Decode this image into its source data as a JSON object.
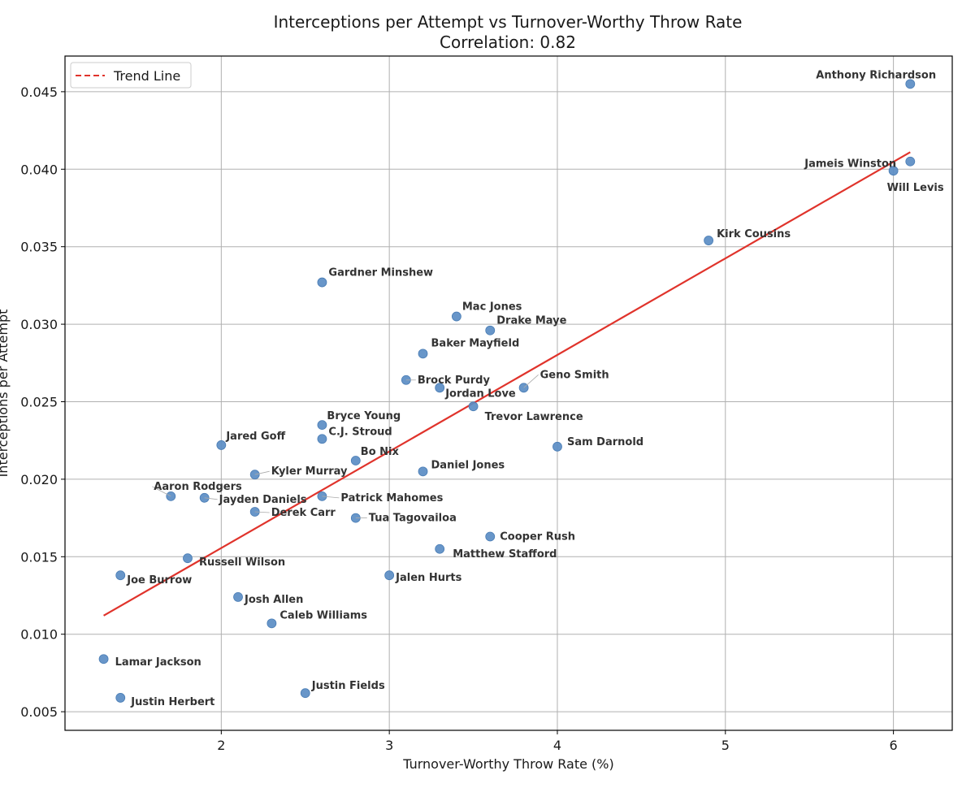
{
  "chart_data": {
    "type": "scatter",
    "title": "Interceptions per Attempt vs Turnover-Worthy Throw Rate",
    "subtitle": "Correlation: 0.82",
    "xlabel": "Turnover-Worthy Throw Rate (%)",
    "ylabel": "Interceptions per Attempt",
    "xlim": [
      1.07,
      6.35
    ],
    "ylim": [
      0.0038,
      0.0473
    ],
    "x_ticks": [
      2,
      3,
      4,
      5,
      6
    ],
    "x_tick_labels": [
      "2",
      "3",
      "4",
      "5",
      "6"
    ],
    "y_ticks": [
      0.005,
      0.01,
      0.015,
      0.02,
      0.025,
      0.03,
      0.035,
      0.04,
      0.045
    ],
    "y_tick_labels": [
      "0.005",
      "0.010",
      "0.015",
      "0.020",
      "0.025",
      "0.030",
      "0.035",
      "0.040",
      "0.045"
    ],
    "grid": true,
    "legend": {
      "placement": "top-left",
      "entries": [
        "Trend Line"
      ]
    },
    "point_color": "#5b8dc4",
    "trend_color": "#e0332b",
    "trend_line": {
      "x": [
        1.3,
        6.1
      ],
      "y": [
        0.0112,
        0.0411
      ]
    },
    "points": [
      {
        "name": "Anthony Richardson",
        "x": 6.1,
        "y": 0.0455
      },
      {
        "name": "Jameis Winston",
        "x": 6.1,
        "y": 0.0405
      },
      {
        "name": "Will Levis",
        "x": 6.0,
        "y": 0.0399
      },
      {
        "name": "Kirk Cousins",
        "x": 4.9,
        "y": 0.0354
      },
      {
        "name": "Gardner Minshew",
        "x": 2.6,
        "y": 0.0327
      },
      {
        "name": "Mac Jones",
        "x": 3.4,
        "y": 0.0305
      },
      {
        "name": "Drake Maye",
        "x": 3.6,
        "y": 0.0296
      },
      {
        "name": "Baker Mayfield",
        "x": 3.2,
        "y": 0.0281
      },
      {
        "name": "Brock Purdy",
        "x": 3.1,
        "y": 0.0264
      },
      {
        "name": "Jordan Love",
        "x": 3.3,
        "y": 0.0259
      },
      {
        "name": "Geno Smith",
        "x": 3.8,
        "y": 0.0259
      },
      {
        "name": "Trevor Lawrence",
        "x": 3.5,
        "y": 0.0247
      },
      {
        "name": "Bryce Young",
        "x": 2.6,
        "y": 0.0235
      },
      {
        "name": "C.J. Stroud",
        "x": 2.6,
        "y": 0.0226
      },
      {
        "name": "Jared Goff",
        "x": 2.0,
        "y": 0.0222
      },
      {
        "name": "Sam Darnold",
        "x": 4.0,
        "y": 0.0221
      },
      {
        "name": "Bo Nix",
        "x": 2.8,
        "y": 0.0212
      },
      {
        "name": "Daniel Jones",
        "x": 3.2,
        "y": 0.0205
      },
      {
        "name": "Kyler Murray",
        "x": 2.2,
        "y": 0.0203
      },
      {
        "name": "Aaron Rodgers",
        "x": 1.7,
        "y": 0.0189
      },
      {
        "name": "Jayden Daniels",
        "x": 1.9,
        "y": 0.0188
      },
      {
        "name": "Patrick Mahomes",
        "x": 2.6,
        "y": 0.0189
      },
      {
        "name": "Derek Carr",
        "x": 2.2,
        "y": 0.0179
      },
      {
        "name": "Tua Tagovailoa",
        "x": 2.8,
        "y": 0.0175
      },
      {
        "name": "Cooper Rush",
        "x": 3.6,
        "y": 0.0163
      },
      {
        "name": "Matthew Stafford",
        "x": 3.3,
        "y": 0.0155
      },
      {
        "name": "Russell Wilson",
        "x": 1.8,
        "y": 0.0149
      },
      {
        "name": "Joe Burrow",
        "x": 1.4,
        "y": 0.0138
      },
      {
        "name": "Jalen Hurts",
        "x": 3.0,
        "y": 0.0138
      },
      {
        "name": "Josh Allen",
        "x": 2.1,
        "y": 0.0124
      },
      {
        "name": "Caleb Williams",
        "x": 2.3,
        "y": 0.0107
      },
      {
        "name": "Lamar Jackson",
        "x": 1.3,
        "y": 0.0084
      },
      {
        "name": "Justin Fields",
        "x": 2.5,
        "y": 0.0062
      },
      {
        "name": "Justin Herbert",
        "x": 1.4,
        "y": 0.0059
      }
    ]
  }
}
